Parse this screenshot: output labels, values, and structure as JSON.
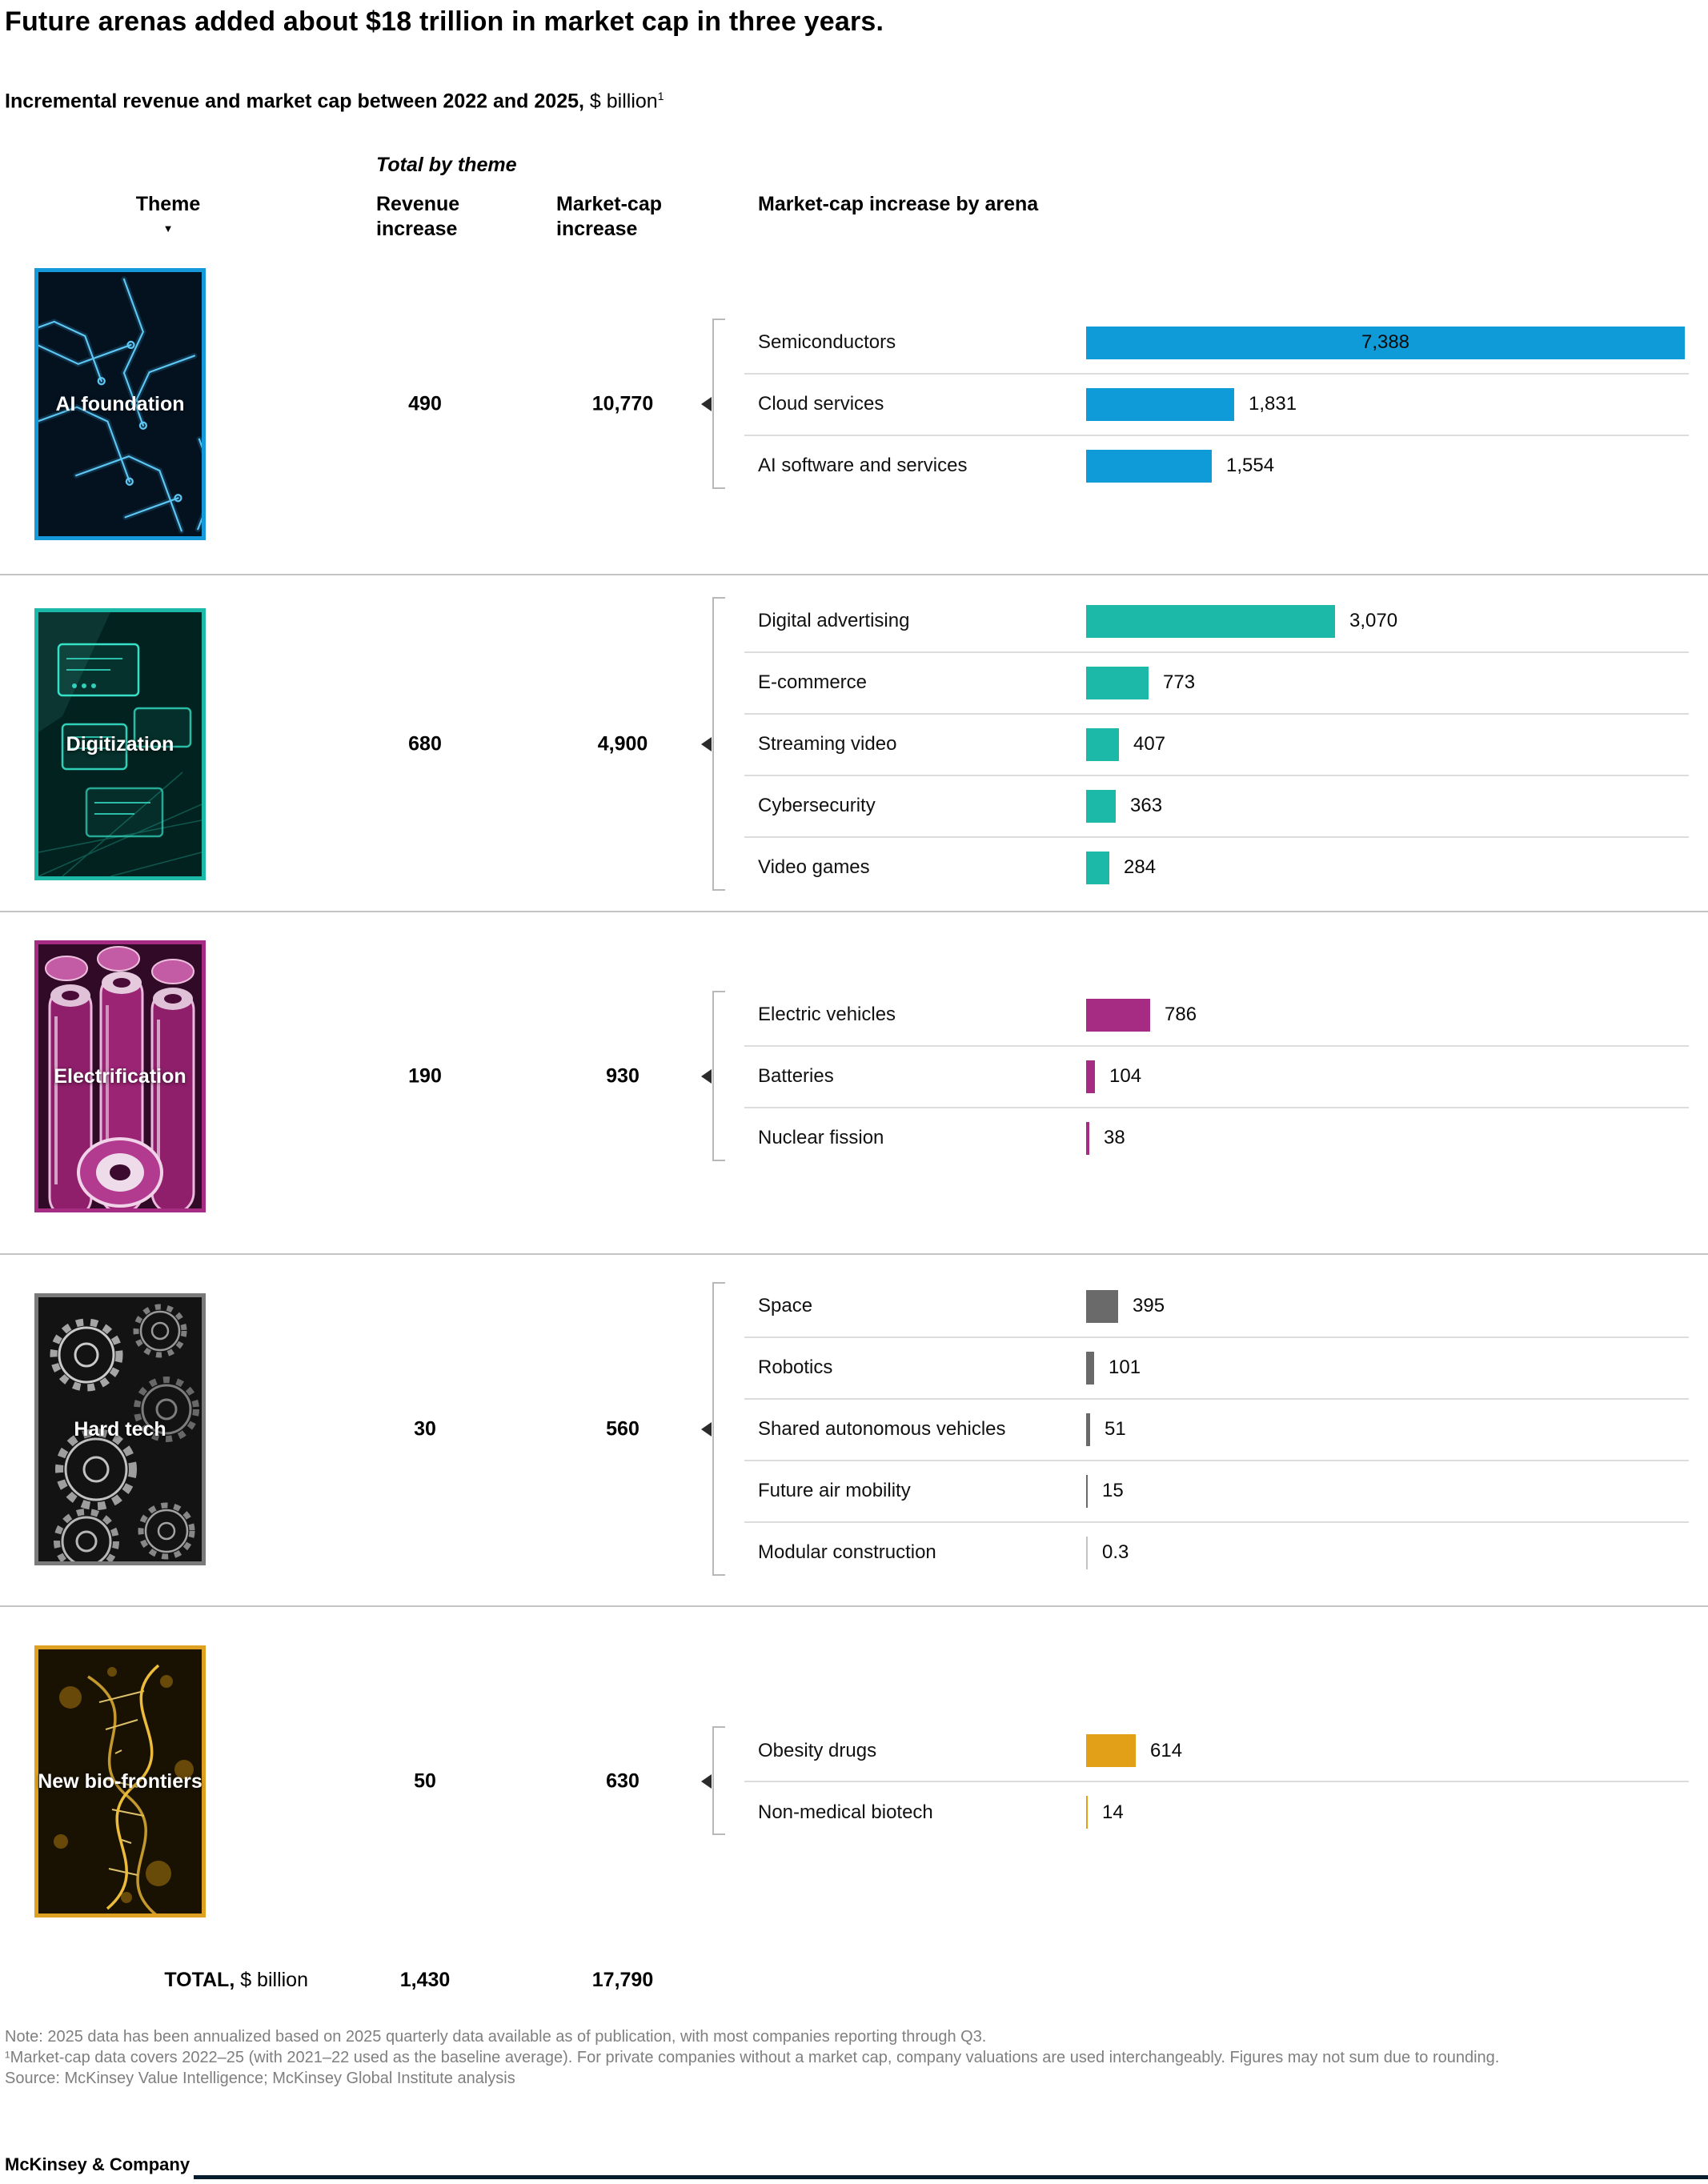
{
  "title": "Future arenas added about $18 trillion in market cap in three years.",
  "subtitle": {
    "bold": "Incremental revenue and market cap between 2022 and 2025,",
    "unit": " $ billion",
    "footnote_marker": "1"
  },
  "columns": {
    "group_header": "Total by theme",
    "theme": "Theme",
    "sort_indicator": "▼",
    "revenue": "Revenue increase",
    "market_cap": "Market-cap increase",
    "by_arena": "Market-cap increase by arena"
  },
  "chart_data": {
    "type": "bar",
    "unit": "$ billion",
    "xlim": [
      0,
      7388
    ],
    "sections": [
      {
        "theme": "AI foundation",
        "art": "circuit",
        "color": "#0F9BD8",
        "border_color": "#1599DB",
        "revenue_increase": "490",
        "market_cap_increase": "10,770",
        "arenas": [
          {
            "label": "Semiconductors",
            "value": 7388,
            "display": "7,388",
            "label_inside": true
          },
          {
            "label": "Cloud services",
            "value": 1831,
            "display": "1,831"
          },
          {
            "label": "AI software and services",
            "value": 1554,
            "display": "1,554"
          }
        ]
      },
      {
        "theme": "Digitization",
        "art": "screens",
        "color": "#1CB9A8",
        "border_color": "#1CB9A8",
        "revenue_increase": "680",
        "market_cap_increase": "4,900",
        "arenas": [
          {
            "label": "Digital advertising",
            "value": 3070,
            "display": "3,070"
          },
          {
            "label": "E-commerce",
            "value": 773,
            "display": "773"
          },
          {
            "label": "Streaming video",
            "value": 407,
            "display": "407"
          },
          {
            "label": "Cybersecurity",
            "value": 363,
            "display": "363"
          },
          {
            "label": "Video games",
            "value": 284,
            "display": "284"
          }
        ]
      },
      {
        "theme": "Electrification",
        "art": "batteries",
        "color": "#A62B82",
        "border_color": "#A62B82",
        "revenue_increase": "190",
        "market_cap_increase": "930",
        "arenas": [
          {
            "label": "Electric vehicles",
            "value": 786,
            "display": "786"
          },
          {
            "label": "Batteries",
            "value": 104,
            "display": "104"
          },
          {
            "label": "Nuclear fission",
            "value": 38,
            "display": "38"
          }
        ]
      },
      {
        "theme": "Hard tech",
        "art": "gears",
        "color": "#6A6A6A",
        "border_color": "#7A7A7A",
        "revenue_increase": "30",
        "market_cap_increase": "560",
        "arenas": [
          {
            "label": "Space",
            "value": 395,
            "display": "395"
          },
          {
            "label": "Robotics",
            "value": 101,
            "display": "101"
          },
          {
            "label": "Shared autonomous vehicles",
            "value": 51,
            "display": "51"
          },
          {
            "label": "Future air mobility",
            "value": 15,
            "display": "15"
          },
          {
            "label": "Modular construction",
            "value": 0.3,
            "display": "0.3",
            "faint": true
          }
        ]
      },
      {
        "theme": "New bio-frontiers",
        "art": "dna",
        "color": "#E2A018",
        "border_color": "#DFA122",
        "revenue_increase": "50",
        "market_cap_increase": "630",
        "arenas": [
          {
            "label": "Obesity drugs",
            "value": 614,
            "display": "614"
          },
          {
            "label": "Non-medical biotech",
            "value": 14,
            "display": "14"
          }
        ]
      }
    ],
    "total": {
      "label_bold": "TOTAL,",
      "label_unit": " $ billion",
      "revenue": "1,430",
      "market_cap": "17,790"
    }
  },
  "footnotes": {
    "note": "Note: 2025 data has been annualized based on 2025 quarterly data available as of publication, with most companies reporting through Q3.",
    "fn1": "¹Market-cap data covers 2022–25 (with 2021–22 used as the baseline average). For private companies without a market cap, company valuations are used interchangeably. Figures may not sum due to rounding.",
    "source": "Source: McKinsey Value Intelligence; McKinsey Global Institute analysis"
  },
  "logo": "McKinsey & Company"
}
